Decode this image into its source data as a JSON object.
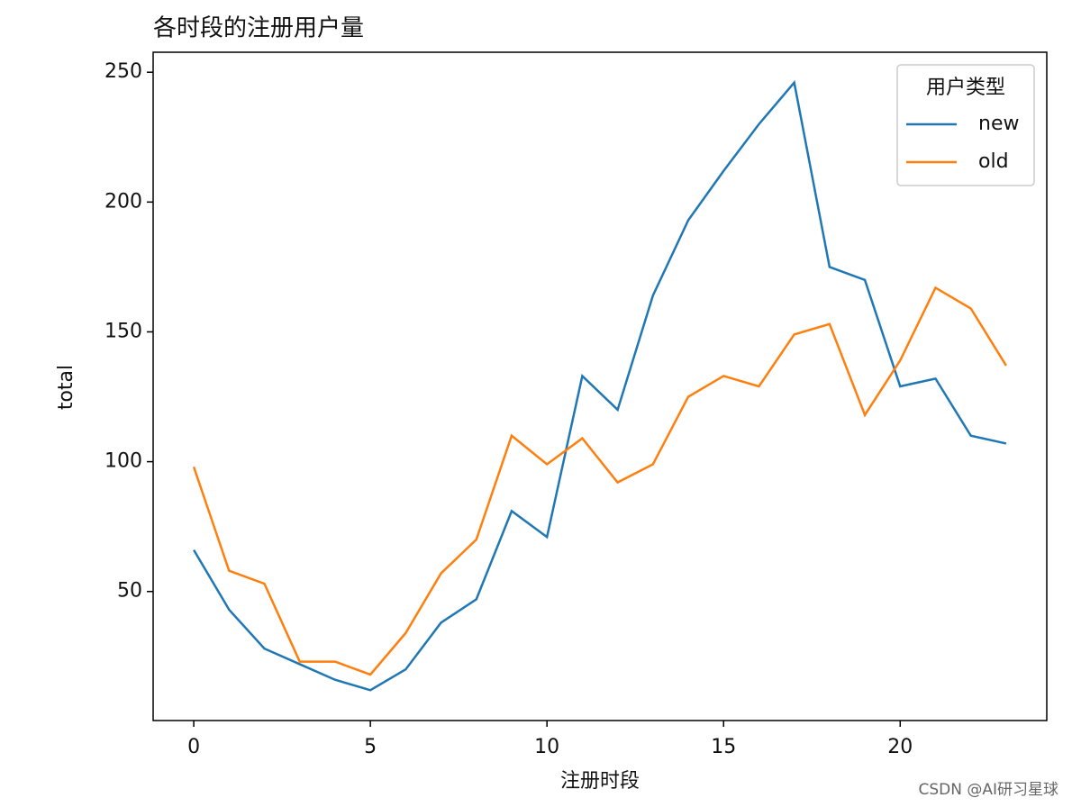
{
  "chart_data": {
    "type": "line",
    "title": "各时段的注册用户量",
    "xlabel": "注册时段",
    "ylabel": "total",
    "x": [
      0,
      1,
      2,
      3,
      4,
      5,
      6,
      7,
      8,
      9,
      10,
      11,
      12,
      13,
      14,
      15,
      16,
      17,
      18,
      19,
      20,
      21,
      22,
      23
    ],
    "series": [
      {
        "name": "new",
        "color": "#1f77b4",
        "values": [
          66,
          43,
          28,
          22,
          16,
          12,
          20,
          38,
          47,
          81,
          71,
          133,
          120,
          164,
          193,
          212,
          230,
          246,
          175,
          170,
          129,
          132,
          110,
          107
        ]
      },
      {
        "name": "old",
        "color": "#ff7f0e",
        "values": [
          98,
          58,
          53,
          23,
          23,
          18,
          34,
          57,
          70,
          110,
          99,
          109,
          92,
          99,
          125,
          133,
          129,
          149,
          153,
          118,
          139,
          167,
          159,
          137
        ]
      }
    ],
    "xlim": [
      -1.15,
      24.15
    ],
    "xticks": [
      0,
      5,
      10,
      15,
      20
    ],
    "ylim": [
      0.3,
      257.7
    ],
    "yticks": [
      50,
      100,
      150,
      200,
      250
    ],
    "legend_title": "用户类型",
    "legend_position": "upper right",
    "watermark": "CSDN @AI研习星球"
  }
}
